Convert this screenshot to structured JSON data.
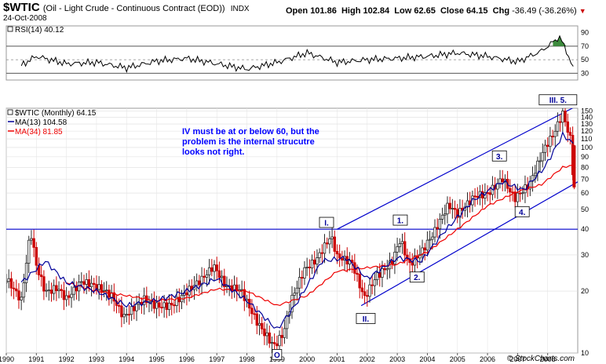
{
  "header": {
    "symbol": "$WTIC",
    "description": "(Oil - Light Crude - Continuous Contract (EOD))",
    "exchange": "INDX",
    "date": "24-Oct-2008",
    "open_label": "Open",
    "open": "101.86",
    "high_label": "High",
    "high": "102.84",
    "low_label": "Low",
    "low": "62.65",
    "close_label": "Close",
    "close": "64.15",
    "chg_label": "Chg",
    "chg": "-36.49 (-36.26%)",
    "chg_marker": "▼"
  },
  "rsi_panel": {
    "label": "RSI(14) 40.12",
    "y_ticks": [
      "90",
      "70",
      "50",
      "30"
    ]
  },
  "price_panel": {
    "legend": [
      "$WTIC (Monthly) 64.15",
      "MA(13) 104.58",
      "MA(34) 81.85"
    ],
    "y_ticks": [
      "150",
      "140",
      "130",
      "120",
      "110",
      "100",
      "90",
      "80",
      "70",
      "60",
      "50",
      "40",
      "30",
      "20",
      "10"
    ],
    "annotation": [
      "IV must be at or below 60, but the",
      "problem is the internal strucutre",
      "looks not right."
    ],
    "wave_labels": [
      "O",
      "I.",
      "II.",
      "1.",
      "2.",
      "3.",
      "4.",
      "III. 5."
    ],
    "watermark": "© StockCharts.com"
  },
  "x_axis": {
    "ticks": [
      "1990",
      "1991",
      "1992",
      "1993",
      "1994",
      "1995",
      "1996",
      "1997",
      "1998",
      "1999",
      "2000",
      "2001",
      "2002",
      "2003",
      "2004",
      "2005",
      "2006",
      "2007",
      "2008"
    ]
  },
  "colors": {
    "up_candle": "#2a2a2a",
    "down_candle": "#cc0000",
    "ma13": "#000099",
    "ma34": "#ee0000",
    "trendline": "#0000cc",
    "annotation_text": "#0000ff",
    "rsi_fill": "#3d8b3d",
    "frame": "#888888"
  },
  "chart_data": {
    "type": "candlestick",
    "title": "$WTIC (Oil - Light Crude - Continuous Contract (EOD))",
    "subtitle": "24-Oct-2008",
    "period": "monthly",
    "y_scale": "log",
    "ylim": [
      10,
      155
    ],
    "xlim": [
      1990,
      2009
    ],
    "last_bar": {
      "open": 101.86,
      "high": 102.84,
      "low": 62.65,
      "close": 64.15,
      "change": -36.49,
      "change_pct": -36.26
    },
    "series": [
      {
        "name": "$WTIC (Monthly)",
        "last": 64.15,
        "points": [
          [
            1990.0,
            22
          ],
          [
            1990.5,
            18
          ],
          [
            1990.75,
            35
          ],
          [
            1990.83,
            39
          ],
          [
            1991.0,
            28
          ],
          [
            1991.3,
            21
          ],
          [
            1991.7,
            22
          ],
          [
            1992.0,
            19
          ],
          [
            1992.5,
            22
          ],
          [
            1993.0,
            20
          ],
          [
            1993.5,
            18
          ],
          [
            1993.9,
            14.5
          ],
          [
            1994.3,
            17
          ],
          [
            1994.6,
            19
          ],
          [
            1995.0,
            18
          ],
          [
            1995.5,
            18
          ],
          [
            1996.0,
            20
          ],
          [
            1996.5,
            22
          ],
          [
            1996.9,
            25
          ],
          [
            1997.3,
            20
          ],
          [
            1997.8,
            20
          ],
          [
            1998.3,
            15
          ],
          [
            1998.9,
            11.5
          ],
          [
            1999.2,
            13
          ],
          [
            1999.5,
            19
          ],
          [
            1999.9,
            25
          ],
          [
            2000.3,
            27
          ],
          [
            2000.8,
            35
          ],
          [
            2001.0,
            28
          ],
          [
            2001.5,
            27
          ],
          [
            2001.9,
            19
          ],
          [
            2002.3,
            25
          ],
          [
            2002.8,
            29
          ],
          [
            2003.1,
            37
          ],
          [
            2003.4,
            27
          ],
          [
            2003.8,
            30
          ],
          [
            2004.2,
            36
          ],
          [
            2004.7,
            50
          ],
          [
            2005.0,
            46
          ],
          [
            2005.6,
            60
          ],
          [
            2006.0,
            63
          ],
          [
            2006.5,
            75
          ],
          [
            2006.9,
            58
          ],
          [
            2007.4,
            65
          ],
          [
            2007.9,
            94
          ],
          [
            2008.2,
            110
          ],
          [
            2008.5,
            140
          ],
          [
            2008.8,
            101.86
          ],
          [
            2008.85,
            64.15
          ]
        ]
      },
      {
        "name": "MA(13)",
        "last": 104.58,
        "points": [
          [
            1990.5,
            22
          ],
          [
            1991.3,
            28
          ],
          [
            1992.0,
            22
          ],
          [
            1993.0,
            20
          ],
          [
            1994.0,
            17
          ],
          [
            1995.0,
            18
          ],
          [
            1996.0,
            20
          ],
          [
            1997.0,
            23
          ],
          [
            1998.0,
            18
          ],
          [
            1999.0,
            13
          ],
          [
            1999.6,
            17
          ],
          [
            2000.5,
            28
          ],
          [
            2001.3,
            29
          ],
          [
            2002.0,
            23
          ],
          [
            2003.0,
            29
          ],
          [
            2003.8,
            28
          ],
          [
            2004.5,
            38
          ],
          [
            2005.5,
            55
          ],
          [
            2006.5,
            68
          ],
          [
            2007.2,
            62
          ],
          [
            2007.9,
            80
          ],
          [
            2008.5,
            115
          ],
          [
            2008.85,
            104.58
          ]
        ]
      },
      {
        "name": "MA(34)",
        "last": 81.85,
        "points": [
          [
            1992.0,
            22
          ],
          [
            1993.0,
            20
          ],
          [
            1994.0,
            19
          ],
          [
            1995.0,
            18
          ],
          [
            1996.0,
            18.5
          ],
          [
            1997.0,
            20.5
          ],
          [
            1998.0,
            20
          ],
          [
            1999.0,
            17
          ],
          [
            2000.0,
            19
          ],
          [
            2001.0,
            25
          ],
          [
            2002.0,
            26
          ],
          [
            2003.0,
            27
          ],
          [
            2004.0,
            31
          ],
          [
            2005.0,
            40
          ],
          [
            2006.0,
            52
          ],
          [
            2007.0,
            61
          ],
          [
            2007.8,
            66
          ],
          [
            2008.5,
            80
          ],
          [
            2008.85,
            81.85
          ]
        ]
      },
      {
        "name": "RSI(14)",
        "last": 40.12,
        "points": [
          [
            1990.5,
            42
          ],
          [
            1991.0,
            55
          ],
          [
            1992.0,
            44
          ],
          [
            1993.0,
            46
          ],
          [
            1994.0,
            38
          ],
          [
            1995.0,
            48
          ],
          [
            1996.0,
            52
          ],
          [
            1997.0,
            44
          ],
          [
            1998.0,
            36
          ],
          [
            1999.0,
            46
          ],
          [
            2000.0,
            60
          ],
          [
            2001.0,
            46
          ],
          [
            2002.0,
            50
          ],
          [
            2003.0,
            52
          ],
          [
            2004.0,
            55
          ],
          [
            2005.0,
            60
          ],
          [
            2006.0,
            55
          ],
          [
            2007.0,
            47
          ],
          [
            2007.8,
            63
          ],
          [
            2008.4,
            84
          ],
          [
            2008.85,
            40.12
          ]
        ]
      }
    ],
    "reference_lines": [
      {
        "y": 40,
        "label": "40"
      }
    ],
    "trend_channel": {
      "upper": [
        [
          2001.0,
          40
        ],
        [
          2009.0,
          160
        ]
      ],
      "lower": [
        [
          2001.8,
          17
        ],
        [
          2009.0,
          68
        ]
      ]
    },
    "wave_points": [
      {
        "label": "O",
        "x": 1999.0,
        "y": 10.5
      },
      {
        "label": "I.",
        "x": 2000.7,
        "y": 38
      },
      {
        "label": "II.",
        "x": 2001.9,
        "y": 16
      },
      {
        "label": "1.",
        "x": 2003.1,
        "y": 39
      },
      {
        "label": "2.",
        "x": 2003.5,
        "y": 25
      },
      {
        "label": "3.",
        "x": 2006.5,
        "y": 80
      },
      {
        "label": "4.",
        "x": 2007.1,
        "y": 52
      },
      {
        "label": "III. 5.",
        "x": 2008.5,
        "y": 150
      }
    ],
    "rsi_levels": [
      30,
      50,
      70,
      90
    ]
  }
}
